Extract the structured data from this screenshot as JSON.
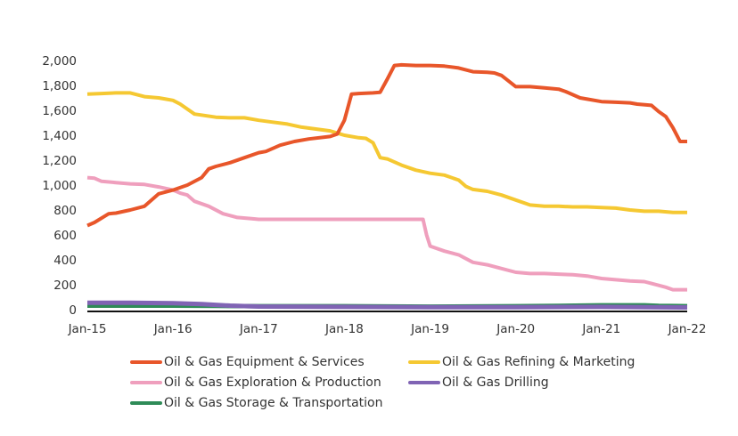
{
  "chart_data": {
    "type": "line",
    "title": "",
    "xlabel": "",
    "ylabel": "",
    "ylim": [
      0,
      2000
    ],
    "yticks": [
      0,
      200,
      400,
      600,
      800,
      1000,
      1200,
      1400,
      1600,
      1800,
      2000
    ],
    "ytick_labels": [
      "0",
      "200",
      "400",
      "600",
      "800",
      "1,000",
      "1,200",
      "1,400",
      "1,600",
      "1,800",
      "2,000"
    ],
    "xlim_months": [
      0,
      84
    ],
    "xticks_months": [
      0,
      12,
      24,
      36,
      48,
      60,
      72,
      84
    ],
    "xtick_labels": [
      "Jan-15",
      "Jan-16",
      "Jan-17",
      "Jan-18",
      "Jan-19",
      "Jan-20",
      "Jan-21",
      "Jan-22"
    ],
    "x_unit": "months since Jan-15",
    "grid": false,
    "legend_position": "bottom",
    "series": [
      {
        "name": "Oil & Gas Equipment & Services",
        "color": "#e8562a",
        "x": [
          0,
          1,
          3,
          4,
          6,
          8,
          9,
          10,
          12,
          14,
          16,
          17,
          18,
          20,
          22,
          24,
          25,
          27,
          29,
          31,
          34,
          35,
          36,
          37,
          38,
          40,
          41,
          42,
          43,
          44,
          46,
          48,
          50,
          52,
          54,
          56,
          57,
          58,
          60,
          62,
          64,
          66,
          67,
          69,
          70,
          72,
          74,
          76,
          77,
          79,
          80,
          81,
          82,
          83,
          84
        ],
        "values": [
          675,
          700,
          770,
          775,
          800,
          830,
          880,
          930,
          960,
          1000,
          1060,
          1130,
          1150,
          1180,
          1220,
          1260,
          1270,
          1320,
          1350,
          1370,
          1390,
          1410,
          1520,
          1730,
          1735,
          1740,
          1745,
          1850,
          1960,
          1965,
          1960,
          1960,
          1955,
          1940,
          1910,
          1905,
          1900,
          1880,
          1790,
          1790,
          1780,
          1770,
          1750,
          1700,
          1690,
          1670,
          1665,
          1660,
          1650,
          1640,
          1590,
          1550,
          1460,
          1350,
          1350
        ]
      },
      {
        "name": "Oil & Gas Refining & Marketing",
        "color": "#f5c832",
        "x": [
          0,
          2,
          4,
          6,
          8,
          10,
          11,
          12,
          13,
          15,
          18,
          20,
          22,
          24,
          26,
          28,
          30,
          32,
          34,
          36,
          38,
          39,
          40,
          41,
          42,
          44,
          46,
          48,
          50,
          52,
          53,
          54,
          56,
          58,
          60,
          62,
          64,
          66,
          68,
          70,
          72,
          74,
          76,
          78,
          80,
          82,
          84
        ],
        "values": [
          1730,
          1735,
          1740,
          1740,
          1710,
          1700,
          1690,
          1680,
          1650,
          1570,
          1545,
          1540,
          1540,
          1520,
          1505,
          1490,
          1465,
          1450,
          1435,
          1400,
          1380,
          1375,
          1340,
          1220,
          1210,
          1160,
          1120,
          1095,
          1080,
          1040,
          990,
          965,
          950,
          920,
          880,
          840,
          830,
          830,
          825,
          825,
          820,
          815,
          800,
          790,
          790,
          780,
          780
        ]
      },
      {
        "name": "Oil & Gas Exploration & Production",
        "color": "#ef9fbd",
        "x": [
          0,
          1,
          2,
          4,
          6,
          8,
          10,
          12,
          13,
          14,
          15,
          17,
          19,
          21,
          23,
          24,
          30,
          36,
          42,
          47,
          47.5,
          48,
          50,
          52,
          54,
          56,
          58,
          60,
          62,
          64,
          66,
          68,
          70,
          72,
          74,
          76,
          78,
          79,
          80,
          81,
          82,
          84
        ],
        "values": [
          1060,
          1055,
          1030,
          1020,
          1010,
          1005,
          985,
          960,
          935,
          920,
          870,
          830,
          770,
          740,
          730,
          725,
          725,
          725,
          725,
          725,
          600,
          510,
          470,
          440,
          380,
          360,
          330,
          300,
          290,
          290,
          285,
          280,
          270,
          250,
          240,
          230,
          225,
          210,
          195,
          180,
          160,
          160
        ]
      },
      {
        "name": "Oil & Gas Drilling",
        "color": "#8064b4",
        "x": [
          0,
          6,
          12,
          16,
          20,
          24,
          36,
          48,
          60,
          72,
          84
        ],
        "values": [
          55,
          55,
          52,
          45,
          32,
          25,
          22,
          20,
          20,
          22,
          18
        ]
      },
      {
        "name": "Oil & Gas Storage & Transportation",
        "color": "#2e8b57",
        "x": [
          0,
          6,
          12,
          18,
          24,
          30,
          36,
          42,
          48,
          54,
          60,
          66,
          72,
          78,
          80,
          84
        ],
        "values": [
          32,
          32,
          32,
          30,
          28,
          28,
          28,
          26,
          24,
          26,
          28,
          30,
          35,
          35,
          30,
          28
        ]
      }
    ]
  },
  "legend": [
    {
      "label": "Oil & Gas Equipment & Services",
      "color": "#e8562a"
    },
    {
      "label": "Oil & Gas Refining & Marketing",
      "color": "#f5c832"
    },
    {
      "label": "Oil & Gas Exploration & Production",
      "color": "#ef9fbd"
    },
    {
      "label": "Oil & Gas Drilling",
      "color": "#8064b4"
    },
    {
      "label": "Oil & Gas Storage & Transportation",
      "color": "#2e8b57"
    }
  ]
}
